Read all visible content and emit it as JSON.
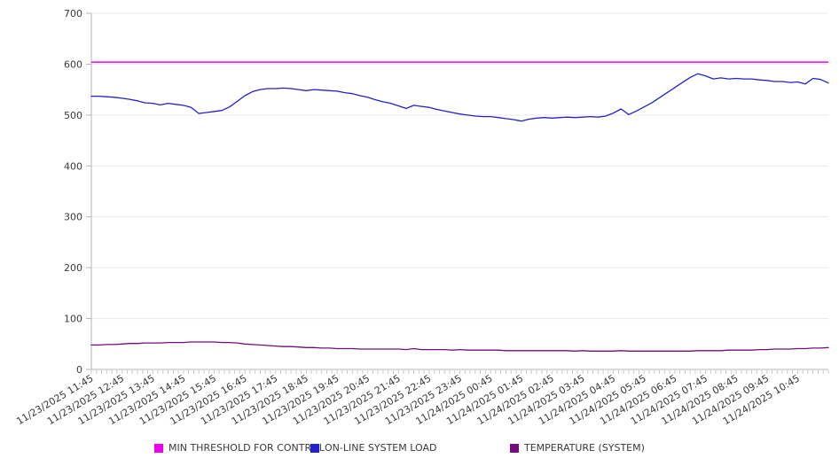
{
  "chart_data": {
    "type": "line",
    "title": "",
    "xlabel": "",
    "ylabel": "",
    "ylim": [
      0,
      700
    ],
    "y_ticks": [
      0,
      100,
      200,
      300,
      400,
      500,
      600,
      700
    ],
    "grid": "horizontal-only",
    "legend_position": "bottom",
    "x_span_hours": 24,
    "sample_step_hours": 0.25,
    "minor_ticks_per_hour": 6,
    "x_labels": [
      "11/23/2025 11:45",
      "11/23/2025 12:45",
      "11/23/2025 13:45",
      "11/23/2025 14:45",
      "11/23/2025 15:45",
      "11/23/2025 16:45",
      "11/23/2025 17:45",
      "11/23/2025 18:45",
      "11/23/2025 19:45",
      "11/23/2025 20:45",
      "11/23/2025 21:45",
      "11/23/2025 22:45",
      "11/23/2025 23:45",
      "11/24/2025 00:45",
      "11/24/2025 01:45",
      "11/24/2025 02:45",
      "11/24/2025 03:45",
      "11/24/2025 04:45",
      "11/24/2025 05:45",
      "11/24/2025 06:45",
      "11/24/2025 07:45",
      "11/24/2025 08:45",
      "11/24/2025 09:45",
      "11/24/2025 10:45"
    ],
    "series": [
      {
        "name": "MIN THRESHOLD FOR CONTROL",
        "color": "#ee00ee",
        "style": "constant",
        "value": 604
      },
      {
        "name": "ON-LINE SYSTEM LOAD",
        "color": "#2222cc",
        "style": "line",
        "values": [
          537,
          537,
          536,
          535,
          533,
          531,
          528,
          524,
          523,
          520,
          523,
          521,
          519,
          515,
          503,
          505,
          507,
          509,
          516,
          527,
          538,
          546,
          550,
          552,
          552,
          553,
          552,
          550,
          548,
          550,
          549,
          548,
          547,
          544,
          542,
          538,
          535,
          530,
          526,
          523,
          518,
          513,
          519,
          517,
          515,
          511,
          508,
          505,
          502,
          500,
          498,
          497,
          497,
          495,
          493,
          491,
          488,
          492,
          494,
          495,
          494,
          495,
          496,
          495,
          496,
          497,
          496,
          498,
          504,
          512,
          501,
          508,
          516,
          524,
          534,
          544,
          554,
          564,
          574,
          581,
          577,
          571,
          573,
          571,
          572,
          571,
          571,
          569,
          568,
          566,
          566,
          564,
          565,
          561,
          572,
          570,
          563
        ]
      },
      {
        "name": "TEMPERATURE (SYSTEM)",
        "color": "#750c7d",
        "style": "line",
        "values": [
          48,
          48,
          49,
          49,
          50,
          51,
          51,
          52,
          52,
          52,
          53,
          53,
          53,
          54,
          54,
          54,
          54,
          53,
          53,
          52,
          50,
          49,
          48,
          47,
          46,
          45,
          45,
          44,
          43,
          43,
          42,
          42,
          41,
          41,
          41,
          40,
          40,
          40,
          40,
          40,
          40,
          39,
          41,
          39,
          39,
          39,
          39,
          38,
          39,
          38,
          38,
          38,
          38,
          38,
          37,
          37,
          37,
          37,
          37,
          37,
          37,
          37,
          37,
          36,
          37,
          36,
          36,
          36,
          36,
          37,
          36,
          36,
          36,
          36,
          36,
          36,
          36,
          36,
          36,
          37,
          37,
          37,
          37,
          38,
          38,
          38,
          38,
          39,
          39,
          40,
          40,
          40,
          41,
          41,
          42,
          42,
          43
        ]
      }
    ],
    "style": {
      "grid_color": "#e9e9e9",
      "axis_color": "#b5b5b5",
      "minor_tick_color": "#c9c9c9",
      "text_color": "#3a3a3a",
      "background": "#ffffff"
    }
  }
}
